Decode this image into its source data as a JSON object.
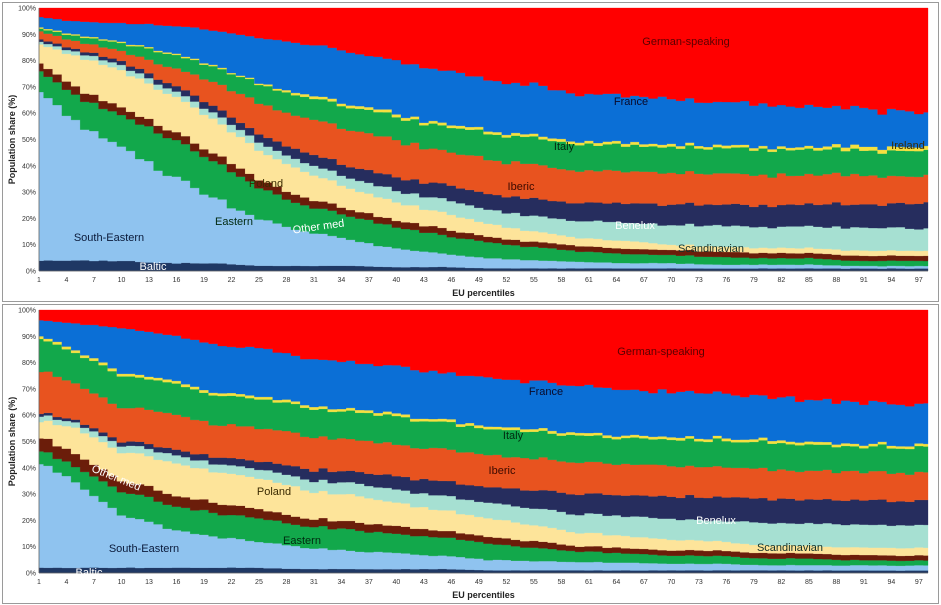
{
  "chart_data": [
    {
      "type": "area",
      "stacked": true,
      "xlabel": "EU percentiles",
      "ylabel": "Population share (%)",
      "ylim": [
        0,
        100
      ],
      "y_ticks": [
        "0%",
        "10%",
        "20%",
        "30%",
        "40%",
        "50%",
        "60%",
        "70%",
        "80%",
        "90%",
        "100%"
      ],
      "x_ticks": [
        "1",
        "4",
        "7",
        "10",
        "13",
        "16",
        "19",
        "22",
        "25",
        "28",
        "31",
        "34",
        "37",
        "40",
        "43",
        "46",
        "49",
        "52",
        "55",
        "58",
        "61",
        "64",
        "67",
        "70",
        "73",
        "76",
        "79",
        "82",
        "85",
        "88",
        "91",
        "94",
        "97"
      ],
      "x": [
        1,
        5,
        10,
        15,
        20,
        25,
        30,
        35,
        40,
        45,
        50,
        55,
        60,
        65,
        70,
        75,
        80,
        85,
        90,
        95,
        98
      ],
      "series": [
        {
          "name": "Baltic",
          "color": "#1f3864",
          "values": [
            4,
            4,
            4,
            3,
            3,
            2,
            2,
            2,
            1.5,
            1.5,
            1,
            1,
            1,
            1,
            1,
            1,
            1,
            1,
            1,
            1,
            1
          ]
        },
        {
          "name": "South-Eastern",
          "color": "#8fc3ef",
          "values": [
            64,
            53,
            43,
            34,
            25,
            18,
            13,
            10,
            7,
            5,
            4,
            3,
            2.5,
            2,
            2,
            1.5,
            1.5,
            1.5,
            1,
            1,
            1
          ]
        },
        {
          "name": "Eastern",
          "color": "#12a84b",
          "values": [
            8,
            10,
            12,
            14,
            14,
            12,
            10,
            9,
            8,
            7,
            6,
            5,
            4,
            3.5,
            3,
            3,
            2.5,
            2.5,
            2,
            2,
            2
          ]
        },
        {
          "name": "Other med",
          "color": "#6b1d0a",
          "values": [
            3,
            3,
            3,
            3,
            3,
            3,
            3,
            2.5,
            2.5,
            2.5,
            2,
            2,
            2,
            2,
            2,
            2,
            2,
            2,
            2,
            2,
            2
          ]
        },
        {
          "name": "Poland",
          "color": "#fde49a",
          "values": [
            7,
            12,
            14,
            14,
            13,
            11,
            10,
            8,
            7,
            6,
            5,
            4,
            3,
            3,
            2,
            2,
            2,
            2,
            2,
            2,
            2
          ]
        },
        {
          "name": "Scandinavian",
          "color": "#a6e0d2",
          "values": [
            1,
            1.5,
            2,
            2,
            2.5,
            3,
            3.5,
            4,
            4.5,
            5,
            5.5,
            6,
            6.5,
            7,
            7.5,
            8,
            8,
            8.5,
            9,
            9,
            9
          ]
        },
        {
          "name": "Benelux",
          "color": "#262d5e",
          "values": [
            1,
            1,
            1.5,
            2,
            2.5,
            3,
            4,
            4.5,
            5,
            5.5,
            6,
            6.5,
            7,
            7.5,
            8,
            8,
            8.5,
            9,
            9,
            9.5,
            10
          ]
        },
        {
          "name": "Iberic",
          "color": "#e8531f",
          "values": [
            3,
            3,
            4,
            6,
            9,
            12,
            13,
            14,
            14,
            13,
            13,
            13,
            12.5,
            12.5,
            12,
            12,
            12,
            11.5,
            11.5,
            11,
            11
          ]
        },
        {
          "name": "Italy",
          "color": "#12a84b",
          "values": [
            1,
            2,
            3,
            5,
            6,
            7,
            8,
            8.5,
            9,
            9.5,
            10,
            10,
            10,
            10,
            10,
            10,
            10,
            10,
            10,
            10,
            10
          ]
        },
        {
          "name": "Ireland",
          "color": "#f5e040",
          "values": [
            0.5,
            0.5,
            0.5,
            0.5,
            0.5,
            0.5,
            1,
            1,
            1,
            1,
            1,
            1,
            1,
            1,
            1,
            1,
            1,
            1,
            1.5,
            1.5,
            1.5
          ]
        },
        {
          "name": "France",
          "color": "#0b6fd6",
          "values": [
            4,
            5,
            7,
            10,
            13,
            17,
            19,
            20,
            20,
            20,
            19,
            19,
            18,
            18,
            18,
            17,
            17,
            16,
            15,
            14,
            13
          ]
        },
        {
          "name": "German-speaking",
          "color": "#ff0000",
          "values": [
            3.5,
            5,
            6,
            6.5,
            8.5,
            11.5,
            13.5,
            16.5,
            20.5,
            23.5,
            27.5,
            29.5,
            32.5,
            33.5,
            34.5,
            36.5,
            37.5,
            38.5,
            39.5,
            41.5,
            41.5
          ]
        }
      ],
      "annotations": [
        "German-speaking",
        "France",
        "Italy",
        "Iberic",
        "Ireland",
        "Poland",
        "Benelux",
        "Eastern",
        "Other med",
        "South-Eastern",
        "Scandinavian",
        "Baltic"
      ]
    },
    {
      "type": "area",
      "stacked": true,
      "xlabel": "EU percentiles",
      "ylabel": "Population share (%)",
      "ylim": [
        0,
        100
      ],
      "y_ticks": [
        "0%",
        "10%",
        "20%",
        "30%",
        "40%",
        "50%",
        "60%",
        "70%",
        "80%",
        "90%",
        "100%"
      ],
      "x_ticks": [
        "1",
        "4",
        "7",
        "10",
        "13",
        "16",
        "19",
        "22",
        "25",
        "28",
        "31",
        "34",
        "37",
        "40",
        "43",
        "46",
        "49",
        "52",
        "55",
        "58",
        "61",
        "64",
        "67",
        "70",
        "73",
        "76",
        "79",
        "82",
        "85",
        "88",
        "91",
        "94",
        "97"
      ],
      "x": [
        1,
        5,
        10,
        15,
        20,
        25,
        30,
        35,
        40,
        45,
        50,
        55,
        60,
        65,
        70,
        75,
        80,
        85,
        90,
        95,
        98
      ],
      "series": [
        {
          "name": "Baltic",
          "color": "#1f3864",
          "values": [
            2,
            2,
            2,
            2,
            2,
            2,
            1.5,
            1.5,
            1.5,
            1.5,
            1,
            1,
            1,
            1,
            1,
            1,
            1,
            1,
            1,
            1,
            1
          ]
        },
        {
          "name": "South-Eastern",
          "color": "#8fc3ef",
          "values": [
            40,
            32,
            20,
            15,
            12,
            10,
            8,
            7,
            6,
            5,
            4,
            3.5,
            3,
            3,
            2.5,
            2.5,
            2,
            2,
            2,
            2,
            2
          ]
        },
        {
          "name": "Eastern",
          "color": "#12a84b",
          "values": [
            5,
            6,
            9,
            9,
            9,
            9,
            8,
            8,
            7,
            7,
            6,
            5,
            4,
            3.5,
            3,
            3,
            2.5,
            2.5,
            2,
            2,
            2
          ]
        },
        {
          "name": "Other med",
          "color": "#6b1d0a",
          "values": [
            5,
            5,
            4,
            4,
            4,
            3.5,
            3,
            3,
            3,
            2.5,
            2.5,
            2.5,
            2,
            2,
            2,
            2,
            2,
            2,
            2,
            2,
            2
          ]
        },
        {
          "name": "Poland",
          "color": "#fde49a",
          "values": [
            6,
            10,
            11,
            12,
            12,
            12,
            11,
            10,
            9,
            8,
            7,
            6,
            5,
            4.5,
            4,
            3.5,
            3,
            3,
            3,
            3,
            3
          ]
        },
        {
          "name": "Scandinavian",
          "color": "#a6e0d2",
          "values": [
            2,
            2,
            2.5,
            3,
            3,
            3.5,
            4,
            4.5,
            5,
            5.5,
            6,
            6.5,
            7,
            7.5,
            8,
            8,
            8.5,
            8.5,
            9,
            9,
            9
          ]
        },
        {
          "name": "Benelux",
          "color": "#262d5e",
          "values": [
            1,
            1,
            1.5,
            2,
            2.5,
            3,
            4,
            4.5,
            5,
            5.5,
            6,
            7,
            7.5,
            8,
            8.5,
            9,
            9,
            9.5,
            9.5,
            9.5,
            10
          ]
        },
        {
          "name": "Iberic",
          "color": "#e8531f",
          "values": [
            16,
            14,
            13,
            13,
            12.5,
            12.5,
            12.5,
            12.5,
            12,
            12,
            12,
            12,
            12,
            12,
            11.5,
            11.5,
            11.5,
            11,
            11,
            11,
            11
          ]
        },
        {
          "name": "Italy",
          "color": "#12a84b",
          "values": [
            12,
            12,
            12,
            11.5,
            11,
            11,
            10.5,
            10.5,
            10.5,
            10,
            10,
            10,
            10,
            10,
            10,
            10,
            10,
            10,
            10,
            10,
            10
          ]
        },
        {
          "name": "Ireland",
          "color": "#f5e040",
          "values": [
            1,
            1,
            1,
            1,
            1,
            1,
            1,
            1,
            1,
            1,
            1,
            1,
            1,
            1,
            1,
            1,
            1,
            1,
            1,
            1,
            1
          ]
        },
        {
          "name": "France",
          "color": "#0b6fd6",
          "values": [
            6,
            10,
            17,
            17,
            18,
            18,
            18,
            18,
            18,
            18,
            18,
            18,
            17.5,
            17.5,
            17,
            17,
            16.5,
            16.5,
            16,
            16,
            15.5
          ]
        },
        {
          "name": "German-speaking",
          "color": "#ff0000",
          "values": [
            4,
            5,
            7,
            9.5,
            13,
            14.5,
            18,
            19.5,
            21,
            24,
            25.5,
            27.5,
            29,
            30,
            31,
            31.5,
            33.5,
            34.5,
            36,
            37,
            37.5
          ]
        }
      ],
      "annotations": [
        "German-speaking",
        "France",
        "Italy",
        "Iberic",
        "Benelux",
        "Other med",
        "Poland",
        "Eastern",
        "Scandinavian",
        "South-Eastern",
        "Baltic"
      ]
    }
  ]
}
